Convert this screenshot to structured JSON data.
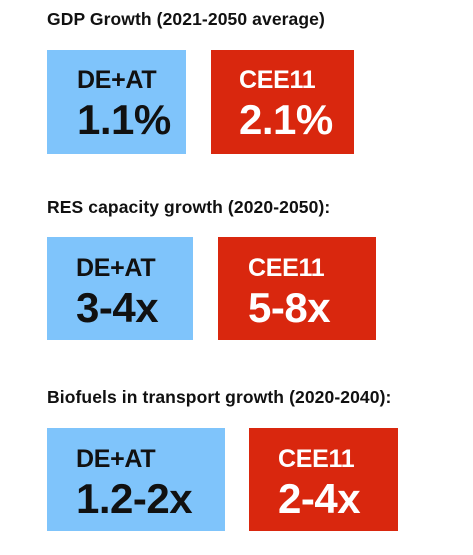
{
  "colors": {
    "region_a": "#7fc4fb",
    "region_b": "#d9270e"
  },
  "sections": [
    {
      "title": "GDP Growth (2021-2050 average)",
      "cards": [
        {
          "label": "DE+AT",
          "value": "1.1%"
        },
        {
          "label": "CEE11",
          "value": "2.1%"
        }
      ]
    },
    {
      "title": "RES capacity growth (2020-2050):",
      "cards": [
        {
          "label": "DE+AT",
          "value": "3-4x"
        },
        {
          "label": "CEE11",
          "value": "5-8x"
        }
      ]
    },
    {
      "title": "Biofuels in transport growth  (2020-2040):",
      "cards": [
        {
          "label": "DE+AT",
          "value": "1.2-2x"
        },
        {
          "label": "CEE11",
          "value": "2-4x"
        }
      ]
    }
  ]
}
